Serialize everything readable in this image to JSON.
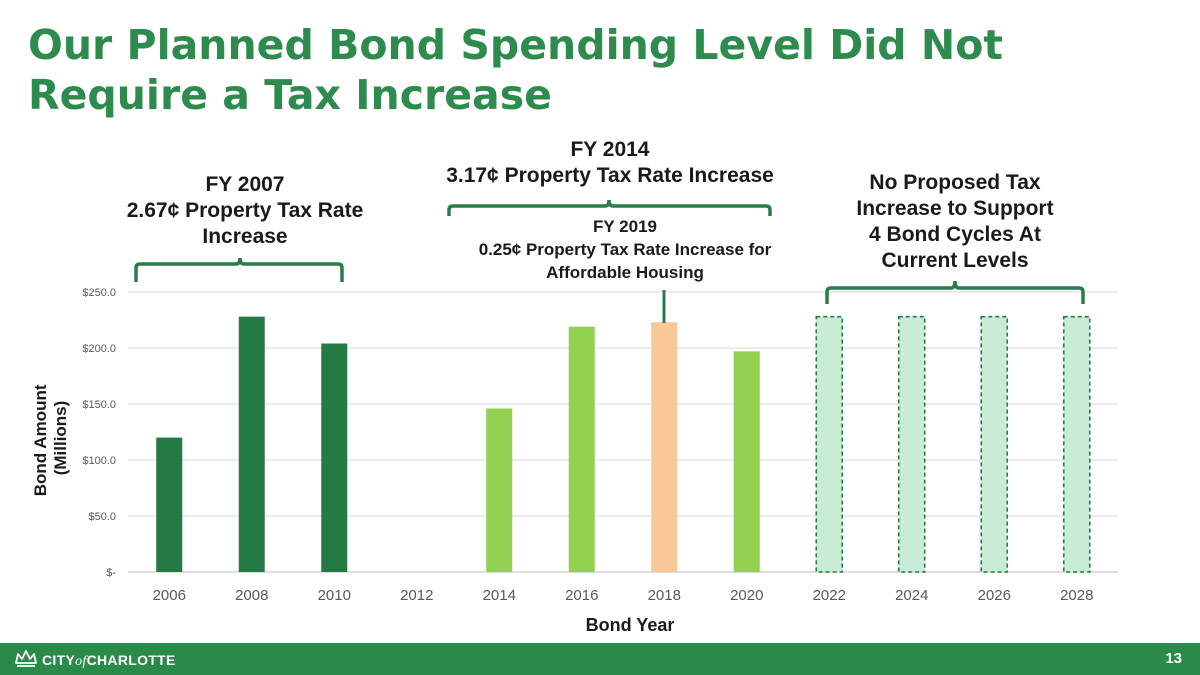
{
  "slide": {
    "title": "Our Planned Bond Spending Level Did Not Require a Tax Increase",
    "page_number": "13"
  },
  "annotations": {
    "fy2007": {
      "line1": "FY 2007",
      "line2": "2.67¢ Property Tax Rate",
      "line3": "Increase"
    },
    "fy2014": {
      "line1": "FY 2014",
      "line2": "3.17¢ Property Tax Rate Increase"
    },
    "fy2019": {
      "line1": "FY 2019",
      "line2": "0.25¢ Property Tax Rate Increase for",
      "line3": "Affordable Housing"
    },
    "proposed": {
      "line1": "No Proposed Tax",
      "line2": "Increase to Support",
      "line3": "4 Bond Cycles At",
      "line4": "Current Levels"
    }
  },
  "footer": {
    "logo_city": "CITY",
    "logo_of": "of",
    "logo_name": "CHARLOTTE",
    "icon": "crown-icon"
  },
  "colors": {
    "title": "#2e8b4e",
    "dark_green": "#237a45",
    "light_green": "#92d050",
    "peach": "#fac898",
    "proposed_fill": "#c9ecd6",
    "proposed_border": "#237a45",
    "footer": "#2a8a4a"
  },
  "chart_data": {
    "type": "bar",
    "xlabel": "Bond Year",
    "ylabel": "Bond Amount (Millions)",
    "ylabel_lines": [
      "Bond Amount",
      "(Millions)"
    ],
    "ylim": [
      0,
      250
    ],
    "yticks": [
      0,
      50,
      100,
      150,
      200,
      250
    ],
    "ytick_labels": [
      "$-",
      "$50.0",
      "$100.0",
      "$150.0",
      "$200.0",
      "$250.0"
    ],
    "grid": true,
    "categories": [
      "2006",
      "2008",
      "2010",
      "2012",
      "2014",
      "2016",
      "2018",
      "2020",
      "2022",
      "2024",
      "2026",
      "2028"
    ],
    "values": [
      120,
      228,
      204,
      0,
      146,
      219,
      223,
      197,
      228,
      228,
      228,
      228
    ],
    "bar_styles": [
      "dark",
      "dark",
      "dark",
      "none",
      "light",
      "light",
      "peach",
      "light",
      "proposed",
      "proposed",
      "proposed",
      "proposed"
    ]
  }
}
